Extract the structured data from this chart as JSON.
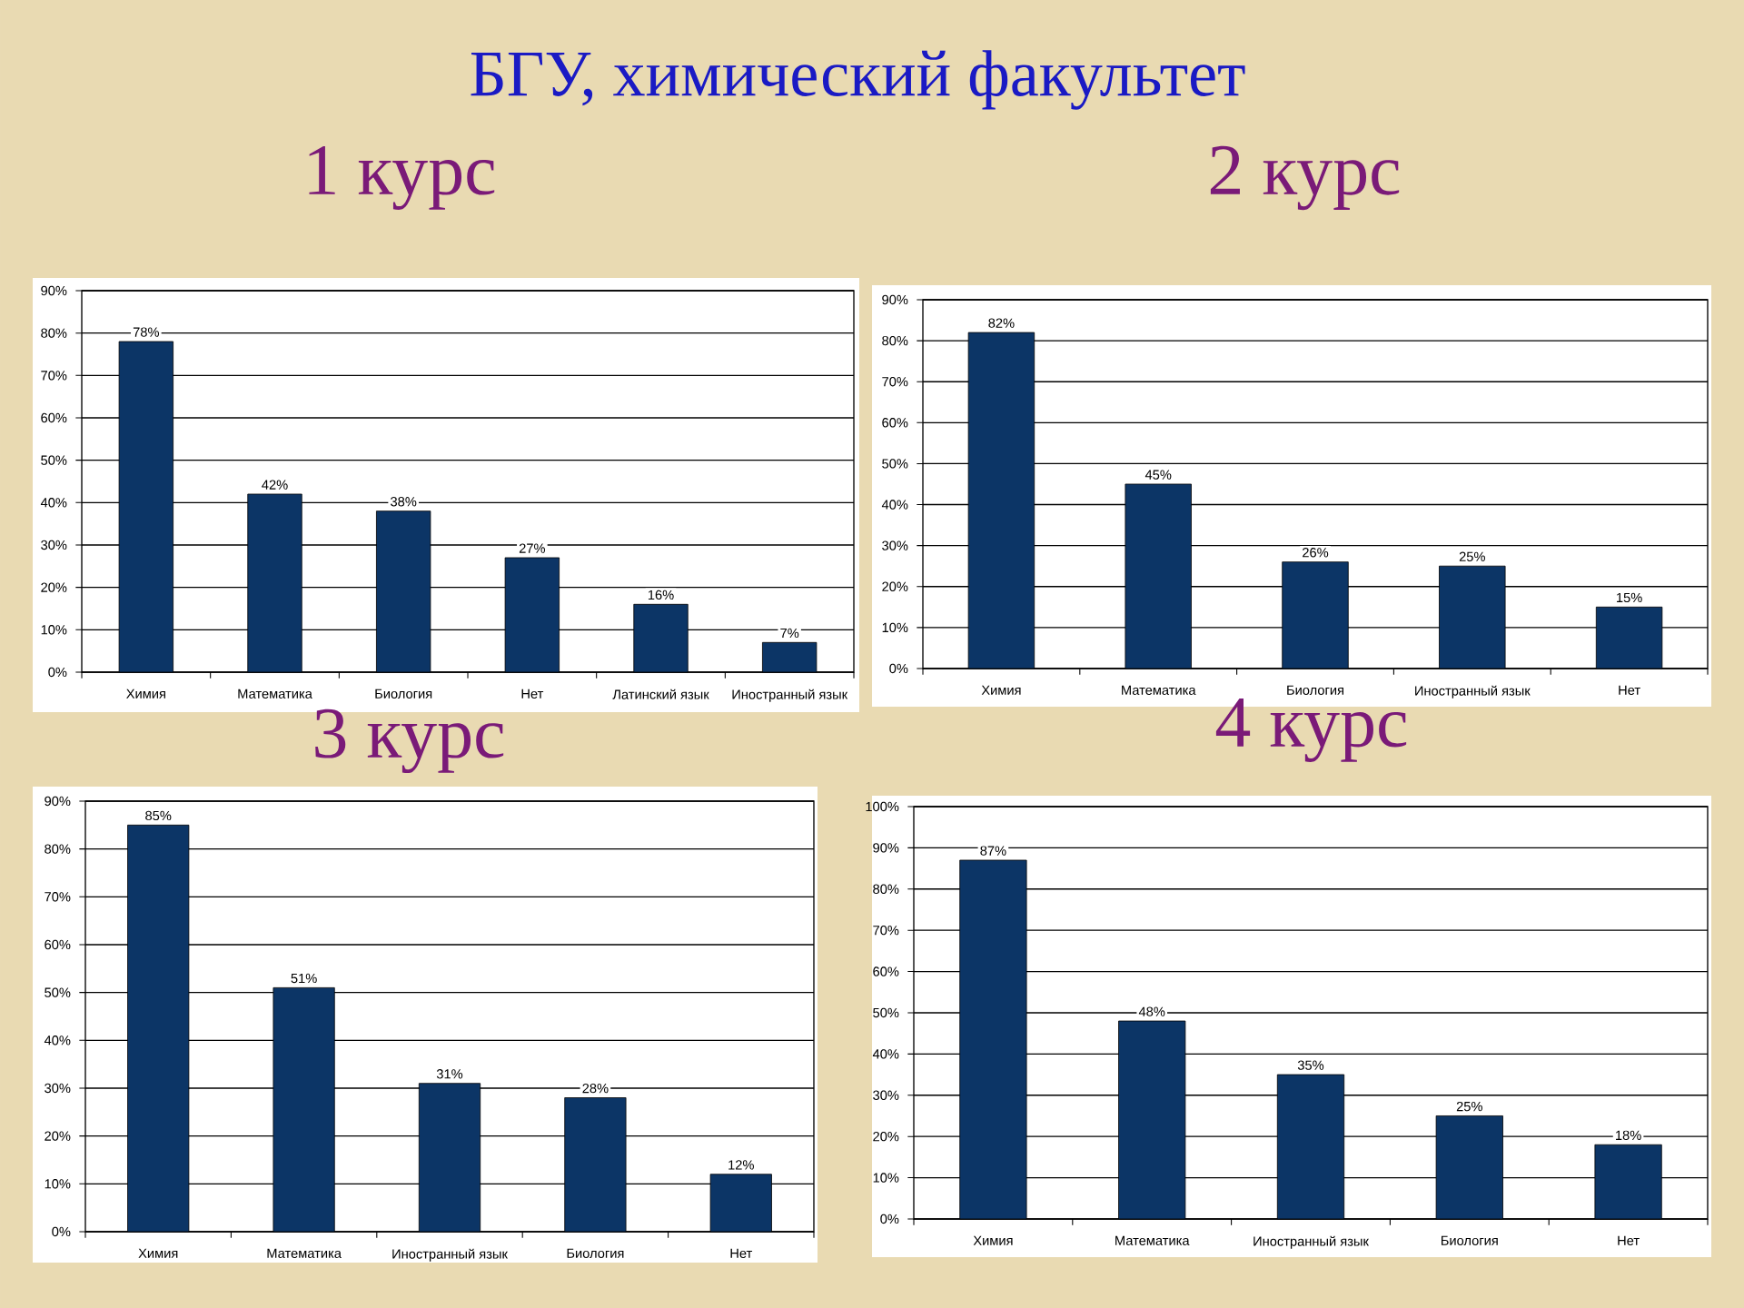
{
  "chart_data": [
    {
      "type": "other",
      "title": "БГУ, химический факультет"
    },
    {
      "type": "bar",
      "title": "1 курс",
      "categories": [
        "Химия",
        "Математика",
        "Биология",
        "Нет",
        "Латинский язык",
        "Иностранный язык"
      ],
      "values": [
        78,
        42,
        38,
        27,
        16,
        7
      ],
      "value_labels": [
        "78%",
        "42%",
        "38%",
        "27%",
        "16%",
        "7%"
      ],
      "color": "#0c3566",
      "ylim": [
        0,
        90
      ],
      "yticks": [
        {
          "value": 0,
          "label": "0%"
        },
        {
          "value": 10,
          "label": "10%"
        },
        {
          "value": 20,
          "label": "20%"
        },
        {
          "value": 30,
          "label": "30%"
        },
        {
          "value": 40,
          "label": "40%"
        },
        {
          "value": 50,
          "label": "50%"
        },
        {
          "value": 60,
          "label": "60%"
        },
        {
          "value": 70,
          "label": "70%"
        },
        {
          "value": 80,
          "label": "80%"
        },
        {
          "value": 90,
          "label": "90%"
        }
      ],
      "grid": "y"
    },
    {
      "type": "bar",
      "title": "2 курс",
      "categories": [
        "Химия",
        "Математика",
        "Биология",
        "Иностранный язык",
        "Нет"
      ],
      "values": [
        82,
        45,
        26,
        25,
        15
      ],
      "value_labels": [
        "82%",
        "45%",
        "26%",
        "25%",
        "15%"
      ],
      "color": "#0c3566",
      "ylim": [
        0,
        90
      ],
      "yticks": [
        {
          "value": 0,
          "label": "0%"
        },
        {
          "value": 10,
          "label": "10%"
        },
        {
          "value": 20,
          "label": "20%"
        },
        {
          "value": 30,
          "label": "30%"
        },
        {
          "value": 40,
          "label": "40%"
        },
        {
          "value": 50,
          "label": "50%"
        },
        {
          "value": 60,
          "label": "60%"
        },
        {
          "value": 70,
          "label": "70%"
        },
        {
          "value": 80,
          "label": "80%"
        },
        {
          "value": 90,
          "label": "90%"
        }
      ],
      "grid": "y"
    },
    {
      "type": "bar",
      "title": "3 курс",
      "categories": [
        "Химия",
        "Математика",
        "Иностранный язык",
        "Биология",
        "Нет"
      ],
      "values": [
        85,
        51,
        31,
        28,
        12
      ],
      "value_labels": [
        "85%",
        "51%",
        "31%",
        "28%",
        "12%"
      ],
      "color": "#0c3566",
      "ylim": [
        0,
        90
      ],
      "yticks": [
        {
          "value": 0,
          "label": "0%"
        },
        {
          "value": 10,
          "label": "10%"
        },
        {
          "value": 20,
          "label": "20%"
        },
        {
          "value": 30,
          "label": "30%"
        },
        {
          "value": 40,
          "label": "40%"
        },
        {
          "value": 50,
          "label": "50%"
        },
        {
          "value": 60,
          "label": "60%"
        },
        {
          "value": 70,
          "label": "70%"
        },
        {
          "value": 80,
          "label": "80%"
        },
        {
          "value": 90,
          "label": "90%"
        }
      ],
      "grid": "y"
    },
    {
      "type": "bar",
      "title": "4 курс",
      "categories": [
        "Химия",
        "Математика",
        "Иностранный язык",
        "Биология",
        "Нет"
      ],
      "values": [
        87,
        48,
        35,
        25,
        18
      ],
      "value_labels": [
        "87%",
        "48%",
        "35%",
        "25%",
        "18%"
      ],
      "color": "#0c3566",
      "ylim": [
        0,
        100
      ],
      "yticks": [
        {
          "value": 0,
          "label": "0%"
        },
        {
          "value": 10,
          "label": "10%"
        },
        {
          "value": 20,
          "label": "20%"
        },
        {
          "value": 30,
          "label": "30%"
        },
        {
          "value": 40,
          "label": "40%"
        },
        {
          "value": 50,
          "label": "50%"
        },
        {
          "value": 60,
          "label": "60%"
        },
        {
          "value": 70,
          "label": "70%"
        },
        {
          "value": 80,
          "label": "80%"
        },
        {
          "value": 90,
          "label": "90%"
        },
        {
          "value": 100,
          "label": "100%"
        }
      ],
      "grid": "y"
    }
  ]
}
